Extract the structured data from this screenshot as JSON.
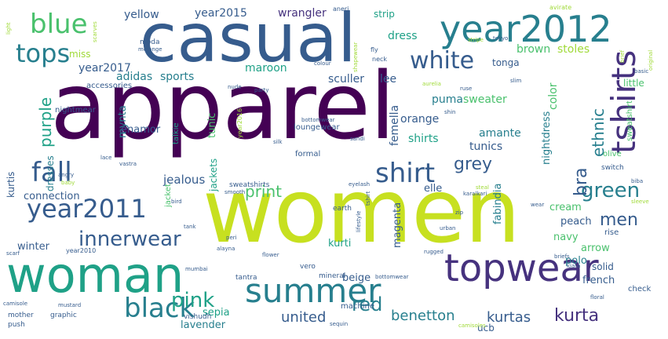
{
  "colors": {
    "c1": "#440154",
    "c2": "#46327e",
    "c3": "#365c8d",
    "c4": "#277f8e",
    "c5": "#1fa187",
    "c6": "#4ac16d",
    "c7": "#a0da39",
    "c8": "#c7e020",
    "c9": "#fde725"
  },
  "words": [
    {
      "text": "apparel",
      "color": "c1"
    },
    {
      "text": "women",
      "color": "c8"
    },
    {
      "text": "casual",
      "color": "c3"
    },
    {
      "text": "woman",
      "color": "c5"
    },
    {
      "text": "year2012",
      "color": "c4"
    },
    {
      "text": "topwear",
      "color": "c2"
    },
    {
      "text": "summer",
      "color": "c4"
    },
    {
      "text": "year2011",
      "color": "c3"
    },
    {
      "text": "tops",
      "color": "c4"
    },
    {
      "text": "fall",
      "color": "c3"
    },
    {
      "text": "blue",
      "color": "c6"
    },
    {
      "text": "white",
      "color": "c3"
    },
    {
      "text": "shirt",
      "color": "c3"
    },
    {
      "text": "black",
      "color": "c4"
    },
    {
      "text": "tshirts",
      "color": "c2"
    },
    {
      "text": "pink",
      "color": "c5"
    },
    {
      "text": "innerwear",
      "color": "c3"
    },
    {
      "text": "green",
      "color": "c4"
    },
    {
      "text": "grey",
      "color": "c3"
    },
    {
      "text": "bra",
      "color": "c3"
    },
    {
      "text": "men",
      "color": "c3"
    },
    {
      "text": "print",
      "color": "c6"
    },
    {
      "text": "purple",
      "color": "c5"
    },
    {
      "text": "red",
      "color": "c4"
    },
    {
      "text": "united",
      "color": "c3"
    },
    {
      "text": "benetton",
      "color": "c4"
    },
    {
      "text": "kurtas",
      "color": "c3"
    },
    {
      "text": "kurta",
      "color": "c2"
    },
    {
      "text": "ethnic",
      "color": "c4"
    },
    {
      "text": "year2015",
      "color": "c3"
    },
    {
      "text": "yellow",
      "color": "c3"
    },
    {
      "text": "wrangler",
      "color": "c2"
    },
    {
      "text": "year2017",
      "color": "c3"
    },
    {
      "text": "adidas",
      "color": "c4"
    },
    {
      "text": "sports",
      "color": "c4"
    },
    {
      "text": "maroon",
      "color": "c5"
    },
    {
      "text": "sculler",
      "color": "c3"
    },
    {
      "text": "lee",
      "color": "c3"
    },
    {
      "text": "puma",
      "color": "c4"
    },
    {
      "text": "sweater",
      "color": "c6"
    },
    {
      "text": "brown",
      "color": "c6"
    },
    {
      "text": "stoles",
      "color": "c7"
    },
    {
      "text": "dress",
      "color": "c5"
    },
    {
      "text": "tonga",
      "color": "c3"
    },
    {
      "text": "color",
      "color": "c6"
    },
    {
      "text": "orange",
      "color": "c3"
    },
    {
      "text": "shirts",
      "color": "c5"
    },
    {
      "text": "tunics",
      "color": "c3"
    },
    {
      "text": "amante",
      "color": "c4"
    },
    {
      "text": "femella",
      "color": "c3"
    },
    {
      "text": "jealous",
      "color": "c3"
    },
    {
      "text": "connection",
      "color": "c3"
    },
    {
      "text": "kurtis",
      "color": "c3"
    },
    {
      "text": "winter",
      "color": "c3"
    },
    {
      "text": "mynta",
      "color": "c4"
    },
    {
      "text": "enamor",
      "color": "c3"
    },
    {
      "text": "tunic",
      "color": "c6"
    },
    {
      "text": "nightdress",
      "color": "c4"
    },
    {
      "text": "elle",
      "color": "c3"
    },
    {
      "text": "fabindia",
      "color": "c4"
    },
    {
      "text": "navy",
      "color": "c6"
    },
    {
      "text": "peach",
      "color": "c3"
    },
    {
      "text": "cream",
      "color": "c6"
    },
    {
      "text": "arrow",
      "color": "c6"
    },
    {
      "text": "polo",
      "color": "c4"
    },
    {
      "text": "solid",
      "color": "c3"
    },
    {
      "text": "french",
      "color": "c3"
    },
    {
      "text": "beige",
      "color": "c3"
    },
    {
      "text": "magenta",
      "color": "c3"
    },
    {
      "text": "sepia",
      "color": "c5"
    },
    {
      "text": "lavender",
      "color": "c4"
    },
    {
      "text": "ucb",
      "color": "c3"
    },
    {
      "text": "strip",
      "color": "c5"
    },
    {
      "text": "little",
      "color": "c6"
    },
    {
      "text": "miss",
      "color": "c7"
    },
    {
      "text": "dresses",
      "color": "c4"
    },
    {
      "text": "nightmear",
      "color": "c3"
    },
    {
      "text": "loungewear",
      "color": "c3"
    },
    {
      "text": "accessories",
      "color": "c3"
    },
    {
      "text": "kurti",
      "color": "c5"
    },
    {
      "text": "jackets",
      "color": "c5"
    },
    {
      "text": "year2010",
      "color": "c3"
    },
    {
      "text": "formal",
      "color": "c3"
    },
    {
      "text": "moda",
      "color": "c3"
    },
    {
      "text": "machine",
      "color": "c3"
    },
    {
      "text": "mineral",
      "color": "c3"
    },
    {
      "text": "vero",
      "color": "c3"
    },
    {
      "text": "tantra",
      "color": "c3"
    },
    {
      "text": "vishudh",
      "color": "c3"
    },
    {
      "text": "graphic",
      "color": "c3"
    },
    {
      "text": "push",
      "color": "c3"
    },
    {
      "text": "mother",
      "color": "c3"
    },
    {
      "text": "check",
      "color": "c3"
    },
    {
      "text": "rise",
      "color": "c3"
    },
    {
      "text": "olive",
      "color": "c6"
    },
    {
      "text": "switch",
      "color": "c3"
    },
    {
      "text": "earth",
      "color": "c3"
    },
    {
      "text": "sweatshirts",
      "color": "c3"
    },
    {
      "text": "sweatshirt",
      "color": "c6"
    },
    {
      "text": "jacket",
      "color": "c6"
    },
    {
      "text": "year2016",
      "color": "c7"
    },
    {
      "text": "talkie",
      "color": "c5"
    },
    {
      "text": "avirate",
      "color": "c7"
    },
    {
      "text": "aneri",
      "color": "c3"
    },
    {
      "text": "fly",
      "color": "c3"
    },
    {
      "text": "neck",
      "color": "c3"
    },
    {
      "text": "tokyo",
      "color": "c3"
    },
    {
      "text": "stripe",
      "color": "c7"
    },
    {
      "text": "scarves",
      "color": "c7"
    },
    {
      "text": "light",
      "color": "c7"
    },
    {
      "text": "colour",
      "color": "c3"
    },
    {
      "text": "melange",
      "color": "c3"
    },
    {
      "text": "shapewear",
      "color": "c7"
    },
    {
      "text": "floral",
      "color": "c3"
    },
    {
      "text": "flower",
      "color": "c3"
    },
    {
      "text": "bird",
      "color": "c3"
    },
    {
      "text": "angry",
      "color": "c3"
    },
    {
      "text": "baby",
      "color": "c7"
    },
    {
      "text": "slim",
      "color": "c3"
    },
    {
      "text": "party",
      "color": "c3"
    },
    {
      "text": "nude",
      "color": "c3"
    },
    {
      "text": "ruse",
      "color": "c3"
    },
    {
      "text": "kiara",
      "color": "c3"
    },
    {
      "text": "brief",
      "color": "c7"
    },
    {
      "text": "original",
      "color": "c7"
    },
    {
      "text": "basic",
      "color": "c3"
    },
    {
      "text": "biba",
      "color": "c3"
    },
    {
      "text": "briefs",
      "color": "c3"
    },
    {
      "text": "eyelash",
      "color": "c3"
    },
    {
      "text": "sleeve",
      "color": "c7"
    },
    {
      "text": "aurelia",
      "color": "c7"
    },
    {
      "text": "mumbai",
      "color": "c3"
    },
    {
      "text": "karalkari",
      "color": "c3"
    },
    {
      "text": "bottomwear",
      "color": "c3"
    },
    {
      "text": "alayna",
      "color": "c3"
    },
    {
      "text": "peri",
      "color": "c3"
    },
    {
      "text": "lifestyle",
      "color": "c3"
    },
    {
      "text": "mustard",
      "color": "c3"
    },
    {
      "text": "camisole",
      "color": "c3"
    },
    {
      "text": "scarf",
      "color": "c3"
    },
    {
      "text": "vastra",
      "color": "c3"
    },
    {
      "text": "tshirt",
      "color": "c3"
    },
    {
      "text": "smooth",
      "color": "c3"
    },
    {
      "text": "zip",
      "color": "c3"
    },
    {
      "text": "camisoles",
      "color": "c7"
    },
    {
      "text": "steal",
      "color": "c7"
    },
    {
      "text": "silk",
      "color": "c3"
    },
    {
      "text": "lace",
      "color": "c3"
    },
    {
      "text": "rugged",
      "color": "c3"
    },
    {
      "text": "bottomwear",
      "color": "c3"
    },
    {
      "text": "shin",
      "color": "c3"
    },
    {
      "text": "urban",
      "color": "c3"
    },
    {
      "text": "tank",
      "color": "c3"
    },
    {
      "text": "sandi",
      "color": "c3"
    },
    {
      "text": "wear",
      "color": "c3"
    },
    {
      "text": "sequin",
      "color": "c3"
    }
  ]
}
